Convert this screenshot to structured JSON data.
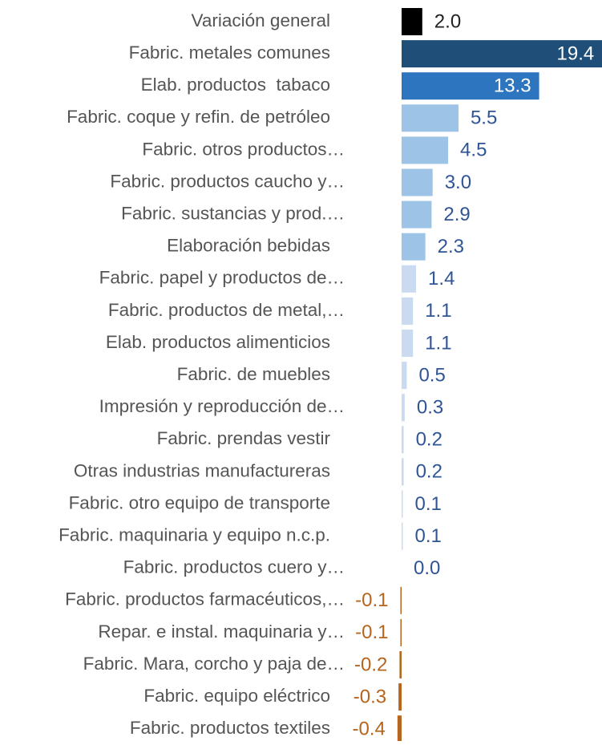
{
  "chart_data": {
    "type": "barh",
    "categories": [
      "Variación general",
      "Fabric. metales comunes",
      "Elab. productos  tabaco",
      "Fabric. coque y refin. de petróleo",
      "Fabric. otros productos…",
      "Fabric. productos caucho y…",
      "Fabric. sustancias y prod.…",
      "Elaboración bebidas",
      "Fabric. papel y productos de…",
      "Fabric. productos de metal,…",
      "Elab. productos alimenticios",
      "Fabric. de muebles",
      "Impresión y reproducción de…",
      "Fabric. prendas vestir",
      "Otras industrias manufactureras",
      "Fabric. otro equipo de transporte",
      "Fabric. maquinaria y equipo n.c.p.",
      "Fabric. productos cuero y…",
      "Fabric. productos farmacéuticos,…",
      "Repar. e instal. maquinaria y…",
      "Fabric. Mara, corcho y paja de…",
      "Fabric. equipo eléctrico",
      "Fabric. productos textiles"
    ],
    "values": [
      2.0,
      19.4,
      13.3,
      5.5,
      4.5,
      3.0,
      2.9,
      2.3,
      1.4,
      1.1,
      1.1,
      0.5,
      0.3,
      0.2,
      0.2,
      0.1,
      0.1,
      0.0,
      -0.1,
      -0.1,
      -0.2,
      -0.3,
      -0.4
    ],
    "value_labels": [
      "2.0",
      "19.4",
      "13.3",
      "5.5",
      "4.5",
      "3.0",
      "2.9",
      "2.3",
      "1.4",
      "1.1",
      "1.1",
      "0.5",
      "0.3",
      "0.2",
      "0.2",
      "0.1",
      "0.1",
      "0.0",
      "-0.1",
      "-0.1",
      "-0.2",
      "-0.3",
      "-0.4"
    ],
    "colors": [
      "#000000",
      "#1f4e79",
      "#2e75c0",
      "#9dc3e6",
      "#9dc3e6",
      "#9dc3e6",
      "#9dc3e6",
      "#9dc3e6",
      "#c9daf1",
      "#c9daf1",
      "#c9daf1",
      "#c9daf1",
      "#c9daf1",
      "#c9daf1",
      "#c9daf1",
      "#c9daf1",
      "#c9daf1",
      "#c9daf1",
      "#b5651d",
      "#b5651d",
      "#b5651d",
      "#b5651d",
      "#b5651d"
    ],
    "label_colors": [
      "#222222",
      "#ffffff",
      "#ffffff",
      "#2f5597",
      "#2f5597",
      "#2f5597",
      "#2f5597",
      "#2f5597",
      "#2f5597",
      "#2f5597",
      "#2f5597",
      "#2f5597",
      "#2f5597",
      "#2f5597",
      "#2f5597",
      "#2f5597",
      "#2f5597",
      "#2f5597",
      "#b5651d",
      "#b5651d",
      "#b5651d",
      "#b5651d",
      "#b5651d"
    ]
  }
}
